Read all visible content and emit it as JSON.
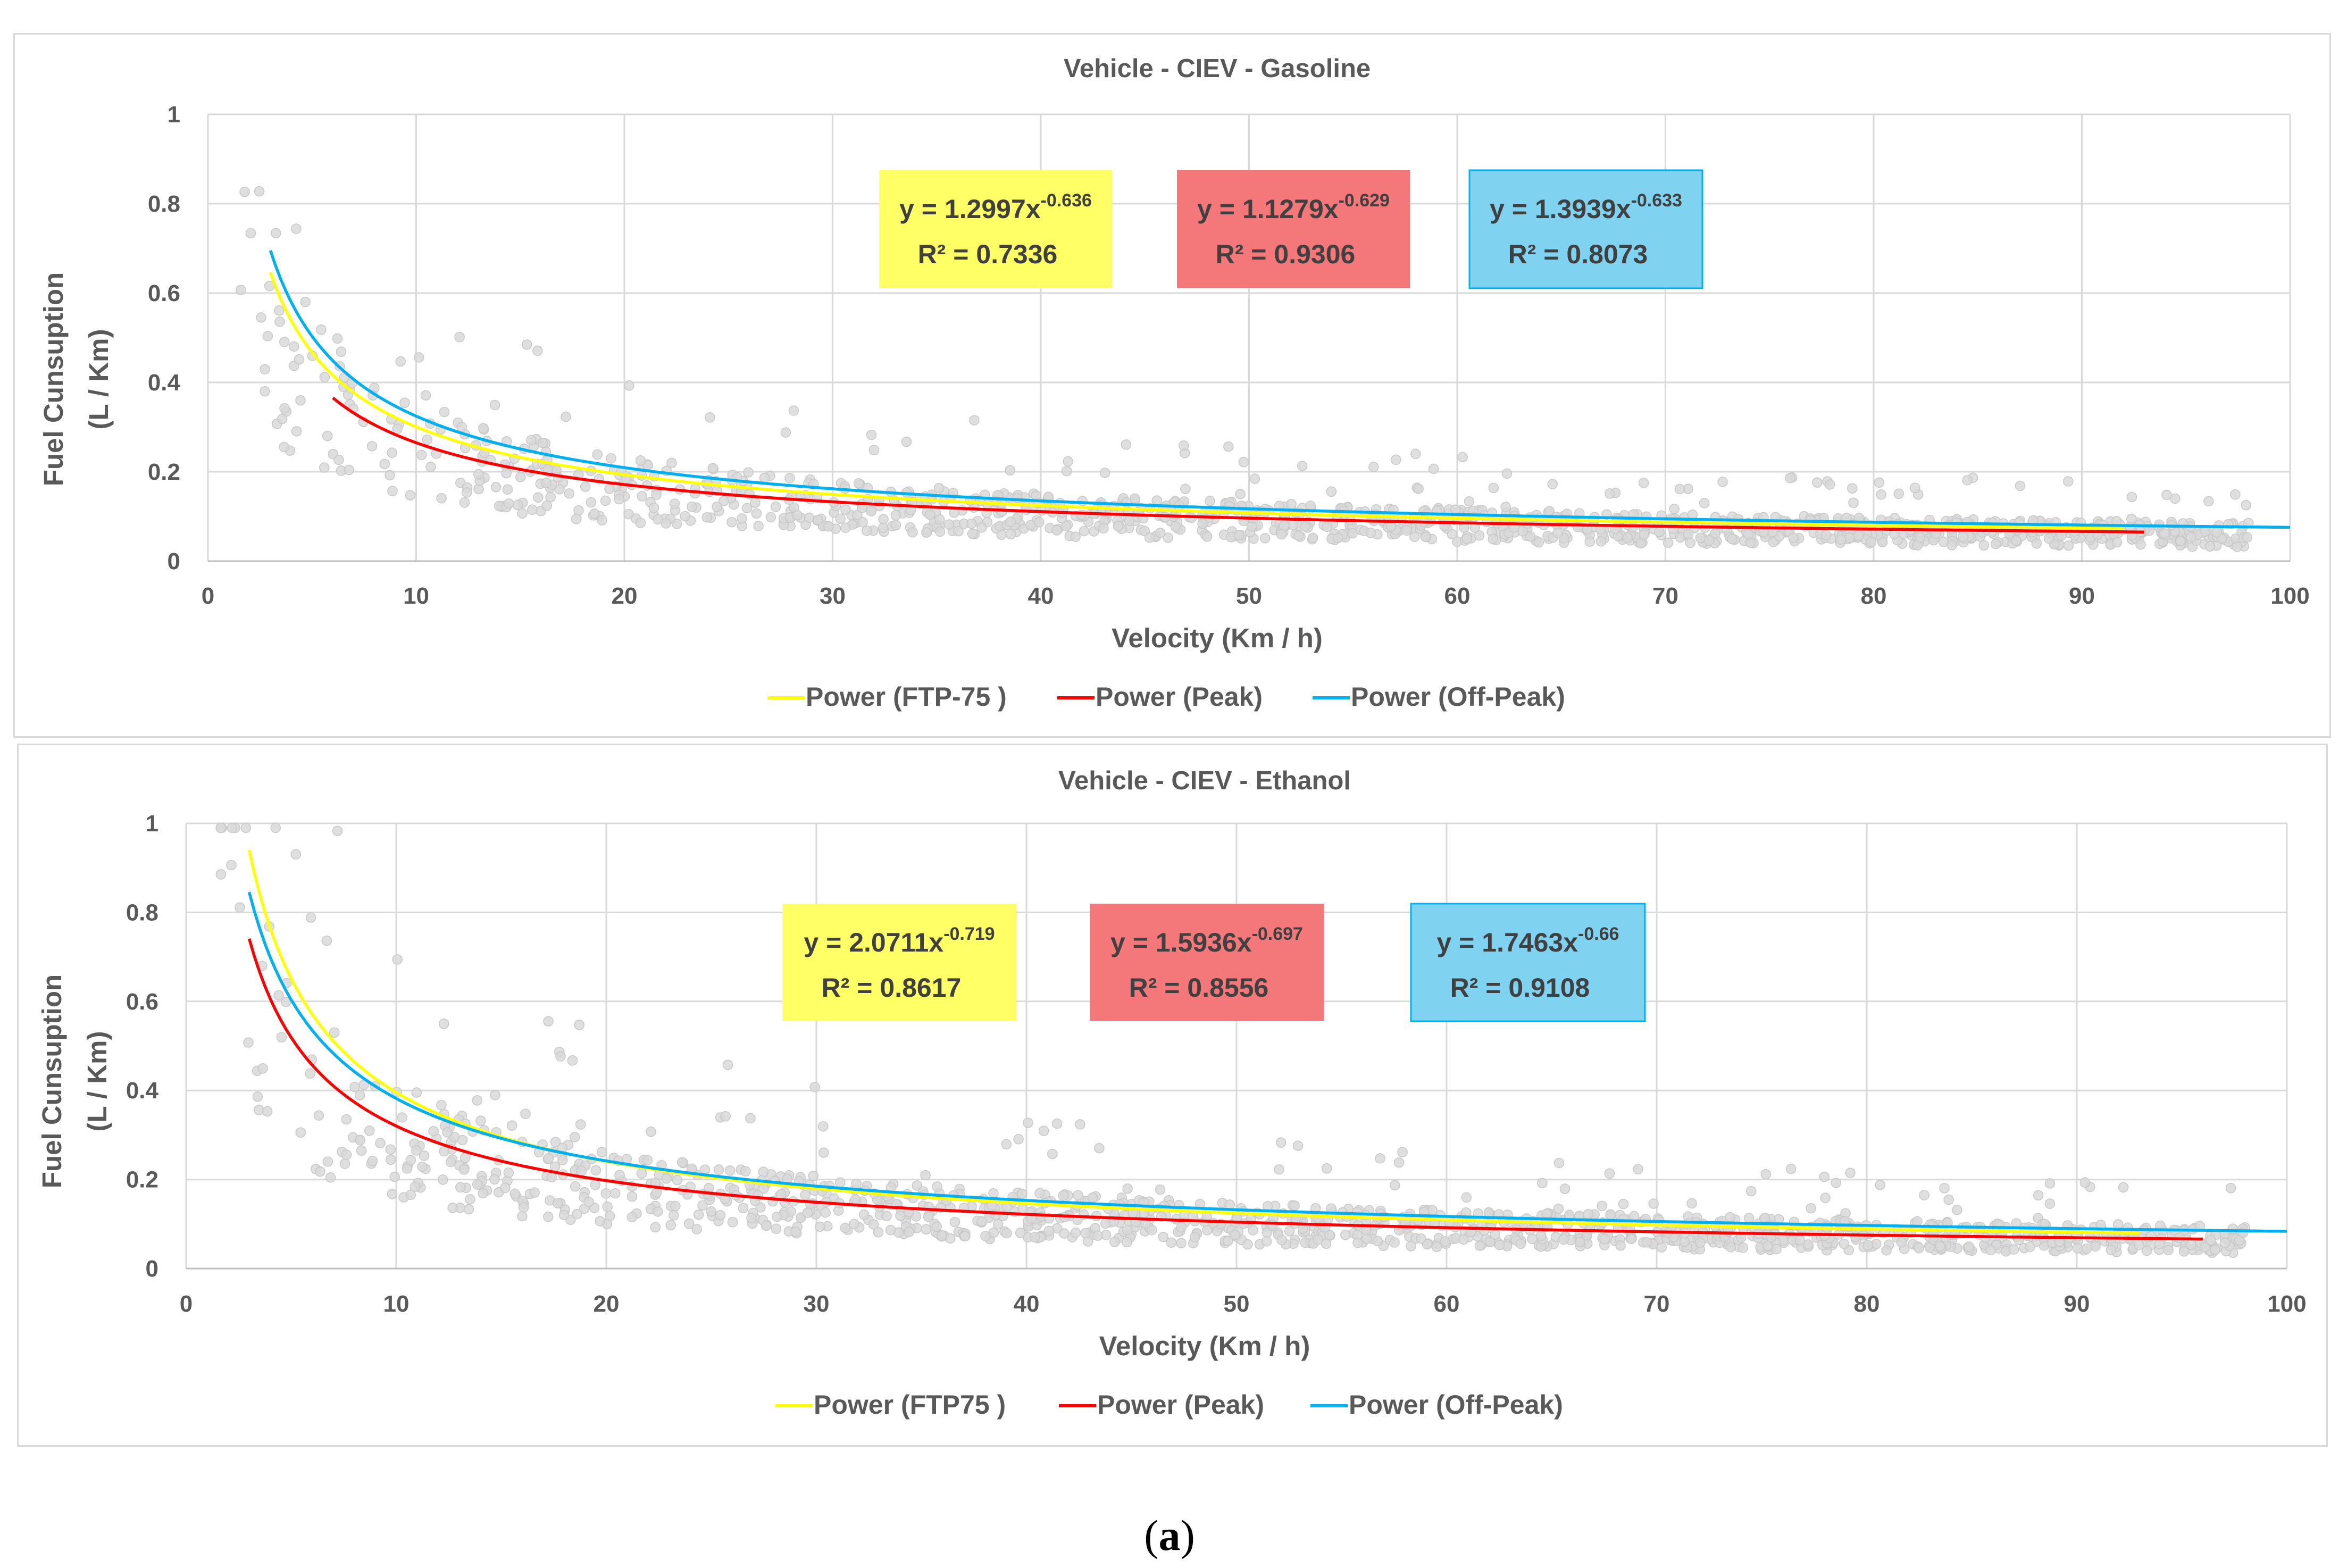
{
  "chart_data": [
    {
      "type": "scatter",
      "title": "Vehicle - CIEV - Gasoline",
      "xlabel": "Velocity (Km / h)",
      "ylabel_line1": "Fuel Cunsuption",
      "ylabel_line2": "(L / Km)",
      "xlim": [
        0,
        100
      ],
      "ylim": [
        0,
        1
      ],
      "xticks": [
        "0",
        "10",
        "20",
        "30",
        "40",
        "50",
        "60",
        "70",
        "80",
        "90",
        "100"
      ],
      "yticks": [
        "0",
        "0.2",
        "0.4",
        "0.6",
        "0.8",
        "1"
      ],
      "grid": true,
      "legend_position": "bottom",
      "scatter_color": "#d9d9d9",
      "scatter_description": "dense cloud of grey measured points following a decaying power trend",
      "series": [
        {
          "name": "Power (FTP-75 )",
          "color": "#ffff00",
          "a": 1.2997,
          "b": -0.636,
          "x_range": [
            3,
            92
          ],
          "eq_main": "y = 1.2997x",
          "eq_exp": "-0.636",
          "r2": "R² = 0.7336",
          "box_color": "#ffff66"
        },
        {
          "name": "Power (Peak)",
          "color": "#ff0000",
          "a": 1.1279,
          "b": -0.629,
          "x_range": [
            6,
            93
          ],
          "eq_main": "y = 1.1279x",
          "eq_exp": "-0.629",
          "r2": "R² = 0.9306",
          "box_color": "#f4777a"
        },
        {
          "name": "Power (Off-Peak)",
          "color": "#00b0f0",
          "a": 1.3939,
          "b": -0.633,
          "x_range": [
            3,
            100
          ],
          "eq_main": "y = 1.3939x",
          "eq_exp": "-0.633",
          "r2": "R² = 0.8073",
          "box_color": "#7fd3f1"
        }
      ]
    },
    {
      "type": "scatter",
      "title": "Vehicle - CIEV - Ethanol",
      "xlabel": "Velocity (Km / h)",
      "ylabel_line1": "Fuel Cunsuption",
      "ylabel_line2": "(L / Km)",
      "xlim": [
        0,
        100
      ],
      "ylim": [
        0,
        1
      ],
      "xticks": [
        "0",
        "10",
        "20",
        "30",
        "40",
        "50",
        "60",
        "70",
        "80",
        "90",
        "100"
      ],
      "yticks": [
        "0",
        "0.2",
        "0.4",
        "0.6",
        "0.8",
        "1"
      ],
      "grid": true,
      "legend_position": "bottom",
      "scatter_color": "#d9d9d9",
      "scatter_description": "dense cloud of grey measured points following a decaying power trend",
      "series": [
        {
          "name": "Power (FTP75 )",
          "color": "#ffff00",
          "a": 2.0711,
          "b": -0.719,
          "x_range": [
            3,
            93
          ],
          "eq_main": "y = 2.0711x",
          "eq_exp": "-0.719",
          "r2": "R² = 0.8617",
          "box_color": "#ffff66"
        },
        {
          "name": "Power (Peak)",
          "color": "#ff0000",
          "a": 1.5936,
          "b": -0.697,
          "x_range": [
            3,
            96
          ],
          "eq_main": "y = 1.5936x",
          "eq_exp": "-0.697",
          "r2": "R² = 0.8556",
          "box_color": "#f4777a"
        },
        {
          "name": "Power (Off-Peak)",
          "color": "#00b0f0",
          "a": 1.7463,
          "b": -0.66,
          "x_range": [
            3,
            100
          ],
          "eq_main": "y = 1.7463x",
          "eq_exp": "-0.66",
          "r2": "R² = 0.9108",
          "box_color": "#7fd3f1"
        }
      ]
    }
  ],
  "caption": {
    "open": "(",
    "letter": "a",
    "close": ")"
  }
}
